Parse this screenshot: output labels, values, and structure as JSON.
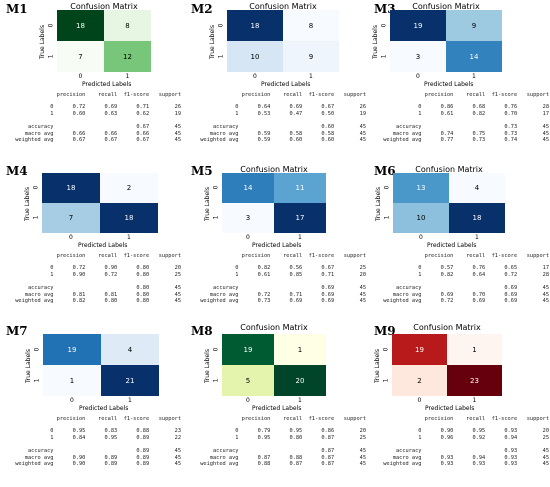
{
  "chart_data": [
    {
      "id": "M1",
      "type": "heatmap",
      "title": "Confusion Matrix",
      "xlabel": "Predicted Labels",
      "ylabel": "True Labels",
      "categories": [
        "0",
        "1"
      ],
      "colormap": "Greens",
      "matrix": [
        [
          18,
          8
        ],
        [
          7,
          12
        ]
      ],
      "colors": [
        [
          "#00441b",
          "#e7f6e3"
        ],
        [
          "#f7fcf5",
          "#78c679"
        ]
      ],
      "text_colors": [
        [
          "#ffffff",
          "#000000"
        ],
        [
          "#000000",
          "#000000"
        ]
      ],
      "report": {
        "headers": [
          "precision",
          "recall",
          "f1-score",
          "support"
        ],
        "rows": [
          {
            "label": "0",
            "precision": "0.72",
            "recall": "0.69",
            "f1": "0.71",
            "support": "26"
          },
          {
            "label": "1",
            "precision": "0.60",
            "recall": "0.63",
            "f1": "0.62",
            "support": "19"
          }
        ],
        "summary": [
          {
            "label": "accuracy",
            "f1": "0.67",
            "support": "45"
          },
          {
            "label": "macro avg",
            "precision": "0.66",
            "recall": "0.66",
            "f1": "0.66",
            "support": "45"
          },
          {
            "label": "weighted avg",
            "precision": "0.67",
            "recall": "0.67",
            "f1": "0.67",
            "support": "45"
          }
        ]
      }
    },
    {
      "id": "M2",
      "type": "heatmap",
      "title": "Confusion Matrix",
      "xlabel": "Predicted Labels",
      "ylabel": "True Labels",
      "categories": [
        "0",
        "1"
      ],
      "colormap": "Blues",
      "matrix": [
        [
          18,
          8
        ],
        [
          10,
          9
        ]
      ],
      "colors": [
        [
          "#08306b",
          "#f7fbff"
        ],
        [
          "#d6e6f4",
          "#eef5fc"
        ]
      ],
      "text_colors": [
        [
          "#ffffff",
          "#000000"
        ],
        [
          "#000000",
          "#000000"
        ]
      ],
      "report": {
        "headers": [
          "precision",
          "recall",
          "f1-score",
          "support"
        ],
        "rows": [
          {
            "label": "0",
            "precision": "0.64",
            "recall": "0.69",
            "f1": "0.67",
            "support": "26"
          },
          {
            "label": "1",
            "precision": "0.53",
            "recall": "0.47",
            "f1": "0.50",
            "support": "19"
          }
        ],
        "summary": [
          {
            "label": "accuracy",
            "f1": "0.60",
            "support": "45"
          },
          {
            "label": "macro avg",
            "precision": "0.59",
            "recall": "0.58",
            "f1": "0.58",
            "support": "45"
          },
          {
            "label": "weighted avg",
            "precision": "0.59",
            "recall": "0.60",
            "f1": "0.60",
            "support": "45"
          }
        ]
      }
    },
    {
      "id": "M3",
      "type": "heatmap",
      "title": "Confusion Matrix",
      "xlabel": "Predicted Labels",
      "ylabel": "True Labels",
      "categories": [
        "0",
        "1"
      ],
      "colormap": "Blues",
      "matrix": [
        [
          19,
          9
        ],
        [
          3,
          14
        ]
      ],
      "colors": [
        [
          "#08306b",
          "#9ecae1"
        ],
        [
          "#f7fbff",
          "#3182bd"
        ]
      ],
      "text_colors": [
        [
          "#ffffff",
          "#000000"
        ],
        [
          "#000000",
          "#ffffff"
        ]
      ],
      "report": {
        "headers": [
          "precision",
          "recall",
          "f1-score",
          "support"
        ],
        "rows": [
          {
            "label": "0",
            "precision": "0.86",
            "recall": "0.68",
            "f1": "0.76",
            "support": "28"
          },
          {
            "label": "1",
            "precision": "0.61",
            "recall": "0.82",
            "f1": "0.70",
            "support": "17"
          }
        ],
        "summary": [
          {
            "label": "accuracy",
            "f1": "0.73",
            "support": "45"
          },
          {
            "label": "macro avg",
            "precision": "0.74",
            "recall": "0.75",
            "f1": "0.73",
            "support": "45"
          },
          {
            "label": "weighted avg",
            "precision": "0.77",
            "recall": "0.73",
            "f1": "0.74",
            "support": "45"
          }
        ]
      }
    },
    {
      "id": "M4",
      "type": "heatmap",
      "title": "",
      "xlabel": "Predicted Labels",
      "ylabel": "True Labels",
      "categories": [
        "0",
        "1"
      ],
      "colormap": "Blues",
      "matrix": [
        [
          18,
          2
        ],
        [
          7,
          18
        ]
      ],
      "colors": [
        [
          "#08306b",
          "#f7fbff"
        ],
        [
          "#a6cde3",
          "#08306b"
        ]
      ],
      "text_colors": [
        [
          "#ffffff",
          "#000000"
        ],
        [
          "#000000",
          "#ffffff"
        ]
      ],
      "report": {
        "headers": [
          "precision",
          "recall",
          "f1-score",
          "support"
        ],
        "rows": [
          {
            "label": "0",
            "precision": "0.72",
            "recall": "0.90",
            "f1": "0.80",
            "support": "20"
          },
          {
            "label": "1",
            "precision": "0.90",
            "recall": "0.72",
            "f1": "0.80",
            "support": "25"
          }
        ],
        "summary": [
          {
            "label": "accuracy",
            "f1": "0.80",
            "support": "45"
          },
          {
            "label": "macro avg",
            "precision": "0.81",
            "recall": "0.81",
            "f1": "0.80",
            "support": "45"
          },
          {
            "label": "weighted avg",
            "precision": "0.82",
            "recall": "0.80",
            "f1": "0.80",
            "support": "45"
          }
        ]
      }
    },
    {
      "id": "M5",
      "type": "heatmap",
      "title": "Confusion Matrix",
      "xlabel": "Predicted Labels",
      "ylabel": "True Labels",
      "categories": [
        "0",
        "1"
      ],
      "colormap": "Blues",
      "matrix": [
        [
          14,
          11
        ],
        [
          3,
          17
        ]
      ],
      "colors": [
        [
          "#2e7ebc",
          "#5ba3d0"
        ],
        [
          "#f7fbff",
          "#08306b"
        ]
      ],
      "text_colors": [
        [
          "#ffffff",
          "#ffffff"
        ],
        [
          "#000000",
          "#ffffff"
        ]
      ],
      "report": {
        "headers": [
          "precision",
          "recall",
          "f1-score",
          "support"
        ],
        "rows": [
          {
            "label": "0",
            "precision": "0.82",
            "recall": "0.56",
            "f1": "0.67",
            "support": "25"
          },
          {
            "label": "1",
            "precision": "0.61",
            "recall": "0.85",
            "f1": "0.71",
            "support": "20"
          }
        ],
        "summary": [
          {
            "label": "accuracy",
            "f1": "0.69",
            "support": "45"
          },
          {
            "label": "macro avg",
            "precision": "0.72",
            "recall": "0.71",
            "f1": "0.69",
            "support": "45"
          },
          {
            "label": "weighted avg",
            "precision": "0.73",
            "recall": "0.69",
            "f1": "0.69",
            "support": "45"
          }
        ]
      }
    },
    {
      "id": "M6",
      "type": "heatmap",
      "title": "Confusion Matrix",
      "xlabel": "Predicted Labels",
      "ylabel": "True Labels",
      "categories": [
        "0",
        "1"
      ],
      "colormap": "Blues",
      "matrix": [
        [
          13,
          4
        ],
        [
          10,
          18
        ]
      ],
      "colors": [
        [
          "#4a98c9",
          "#f7fbff"
        ],
        [
          "#8cc0dd",
          "#08306b"
        ]
      ],
      "text_colors": [
        [
          "#ffffff",
          "#000000"
        ],
        [
          "#000000",
          "#ffffff"
        ]
      ],
      "report": {
        "headers": [
          "precision",
          "recall",
          "f1-score",
          "support"
        ],
        "rows": [
          {
            "label": "0",
            "precision": "0.57",
            "recall": "0.76",
            "f1": "0.65",
            "support": "17"
          },
          {
            "label": "1",
            "precision": "0.82",
            "recall": "0.64",
            "f1": "0.72",
            "support": "28"
          }
        ],
        "summary": [
          {
            "label": "accuracy",
            "f1": "0.69",
            "support": "45"
          },
          {
            "label": "macro avg",
            "precision": "0.69",
            "recall": "0.70",
            "f1": "0.69",
            "support": "45"
          },
          {
            "label": "weighted avg",
            "precision": "0.72",
            "recall": "0.69",
            "f1": "0.69",
            "support": "45"
          }
        ]
      }
    },
    {
      "id": "M7",
      "type": "heatmap",
      "title": "",
      "xlabel": "Predicted Labels",
      "ylabel": "True Labels",
      "categories": [
        "0",
        "1"
      ],
      "colormap": "Blues",
      "matrix": [
        [
          19,
          4
        ],
        [
          1,
          21
        ]
      ],
      "colors": [
        [
          "#2171b5",
          "#deebf7"
        ],
        [
          "#f7fbff",
          "#08306b"
        ]
      ],
      "text_colors": [
        [
          "#ffffff",
          "#000000"
        ],
        [
          "#000000",
          "#ffffff"
        ]
      ],
      "report": {
        "headers": [
          "precision",
          "recall",
          "f1-score",
          "support"
        ],
        "rows": [
          {
            "label": "0",
            "precision": "0.95",
            "recall": "0.83",
            "f1": "0.88",
            "support": "23"
          },
          {
            "label": "1",
            "precision": "0.84",
            "recall": "0.95",
            "f1": "0.89",
            "support": "22"
          }
        ],
        "summary": [
          {
            "label": "accuracy",
            "f1": "0.89",
            "support": "45"
          },
          {
            "label": "macro avg",
            "precision": "0.90",
            "recall": "0.89",
            "f1": "0.89",
            "support": "45"
          },
          {
            "label": "weighted avg",
            "precision": "0.90",
            "recall": "0.89",
            "f1": "0.89",
            "support": "45"
          }
        ]
      }
    },
    {
      "id": "M8",
      "type": "heatmap",
      "title": "Confusion Matrix",
      "xlabel": "Predicted Labels",
      "ylabel": "True Labels",
      "categories": [
        "0",
        "1"
      ],
      "colormap": "YlGn",
      "matrix": [
        [
          19,
          1
        ],
        [
          5,
          20
        ]
      ],
      "colors": [
        [
          "#005a32",
          "#ffffe5"
        ],
        [
          "#e4f4ac",
          "#004529"
        ]
      ],
      "text_colors": [
        [
          "#ffffff",
          "#000000"
        ],
        [
          "#000000",
          "#ffffff"
        ]
      ],
      "report": {
        "headers": [
          "precision",
          "recall",
          "f1-score",
          "support"
        ],
        "rows": [
          {
            "label": "0",
            "precision": "0.79",
            "recall": "0.95",
            "f1": "0.86",
            "support": "20"
          },
          {
            "label": "1",
            "precision": "0.95",
            "recall": "0.80",
            "f1": "0.87",
            "support": "25"
          }
        ],
        "summary": [
          {
            "label": "accuracy",
            "f1": "0.87",
            "support": "45"
          },
          {
            "label": "macro avg",
            "precision": "0.87",
            "recall": "0.88",
            "f1": "0.87",
            "support": "45"
          },
          {
            "label": "weighted avg",
            "precision": "0.88",
            "recall": "0.87",
            "f1": "0.87",
            "support": "45"
          }
        ]
      }
    },
    {
      "id": "M9",
      "type": "heatmap",
      "title": "Confusion Matrix",
      "xlabel": "Predicted Labels",
      "ylabel": "True Labels",
      "categories": [
        "0",
        "1"
      ],
      "colormap": "Reds",
      "matrix": [
        [
          19,
          1
        ],
        [
          2,
          23
        ]
      ],
      "colors": [
        [
          "#b81a1c",
          "#fff5f0"
        ],
        [
          "#fee8dd",
          "#67000d"
        ]
      ],
      "text_colors": [
        [
          "#ffffff",
          "#000000"
        ],
        [
          "#000000",
          "#ffffff"
        ]
      ],
      "report": {
        "headers": [
          "precision",
          "recall",
          "f1-score",
          "support"
        ],
        "rows": [
          {
            "label": "0",
            "precision": "0.90",
            "recall": "0.95",
            "f1": "0.93",
            "support": "20"
          },
          {
            "label": "1",
            "precision": "0.96",
            "recall": "0.92",
            "f1": "0.94",
            "support": "25"
          }
        ],
        "summary": [
          {
            "label": "accuracy",
            "f1": "0.93",
            "support": "45"
          },
          {
            "label": "macro avg",
            "precision": "0.93",
            "recall": "0.94",
            "f1": "0.93",
            "support": "45"
          },
          {
            "label": "weighted avg",
            "precision": "0.93",
            "recall": "0.93",
            "f1": "0.93",
            "support": "45"
          }
        ]
      }
    }
  ]
}
